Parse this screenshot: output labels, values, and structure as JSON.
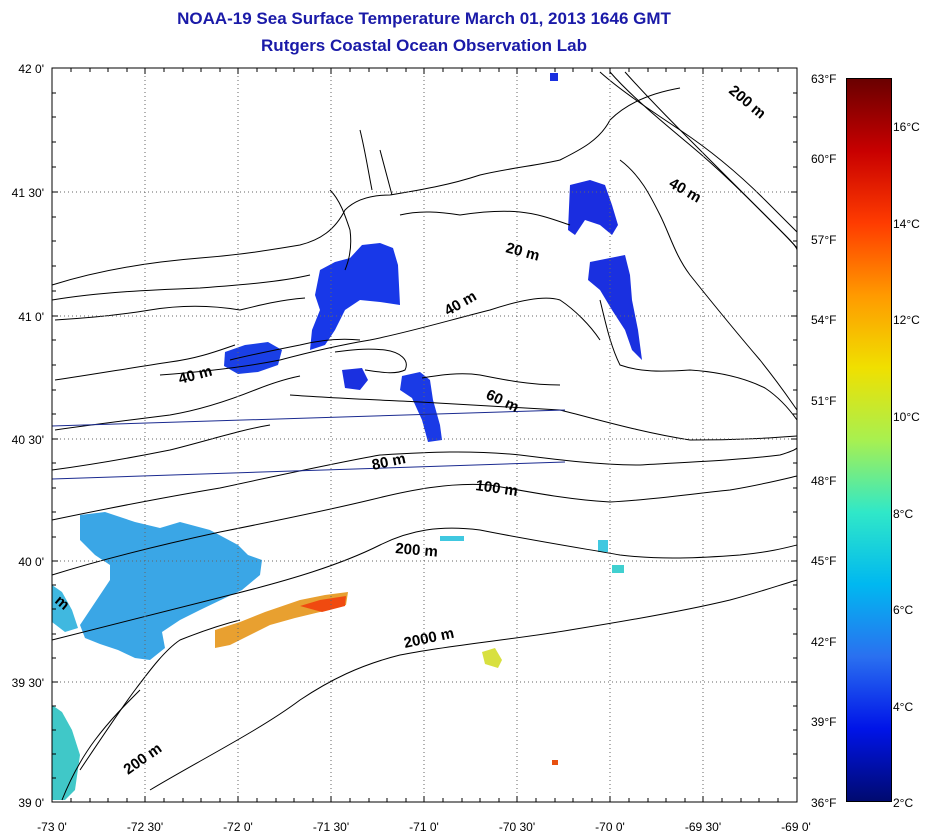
{
  "title": {
    "line1": "NOAA-19 Sea Surface Temperature March 01, 2013 1646 GMT",
    "line2": "Rutgers Coastal Ocean Observation Lab"
  },
  "map": {
    "lat_labels": [
      "42 0'",
      "41 30'",
      "41 0'",
      "40 30'",
      "40 0'",
      "39 30'",
      "39 0'"
    ],
    "lon_labels": [
      "-73 0'",
      "-72 30'",
      "-72 0'",
      "-71 30'",
      "-71 0'",
      "-70 30'",
      "-70 0'",
      "-69 30'",
      "-69 0'"
    ],
    "fahrenheit_labels": [
      "63°F",
      "60°F",
      "57°F",
      "54°F",
      "51°F",
      "48°F",
      "45°F",
      "42°F",
      "39°F",
      "36°F"
    ],
    "contour_labels": [
      "200 m",
      "40 m",
      "20 m",
      "40 m",
      "40 m",
      "60 m",
      "80 m",
      "100 m",
      "200 m",
      "2000 m",
      "200 m",
      "m"
    ]
  },
  "colorbar": {
    "celsius_labels": [
      "16°C",
      "14°C",
      "12°C",
      "10°C",
      "8°C",
      "6°C",
      "4°C",
      "2°C"
    ],
    "colors": [
      "#6a0000",
      "#c80000",
      "#ff3c00",
      "#ff9a00",
      "#f0e000",
      "#a8f050",
      "#30e8c8",
      "#00b8f0",
      "#2a70f0",
      "#0014e8",
      "#000a70"
    ]
  }
}
